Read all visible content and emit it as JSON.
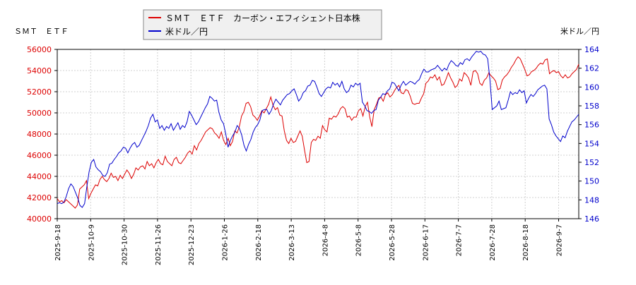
{
  "chart_data": {
    "type": "line",
    "left_label": "ＳＭＴ　ＥＴＦ",
    "right_label": "米ドル／円",
    "legend": [
      {
        "name": "ＳＭＴ　ＥＴＦ　カーボン・エフィシェント日本株",
        "color": "#dd0000"
      },
      {
        "name": "米ドル／円",
        "color": "#0000cc"
      }
    ],
    "y_left": {
      "min": 40000,
      "max": 56000,
      "ticks": [
        "40000",
        "42000",
        "44000",
        "46000",
        "48000",
        "50000",
        "52000",
        "54000",
        "56000"
      ],
      "color": "#dd0000"
    },
    "y_right": {
      "min": 146,
      "max": 164,
      "ticks": [
        "146",
        "148",
        "150",
        "152",
        "154",
        "156",
        "158",
        "160",
        "162",
        "164"
      ],
      "color": "#0000cc"
    },
    "x_ticks": [
      "2025-9-18",
      "2025-10-9",
      "2025-10-30",
      "2025-11-26",
      "2025-12-23",
      "2026-1-26",
      "2026-2-18",
      "2026-3-13",
      "2026-4-8",
      "2026-5-8",
      "2026-5-28",
      "2026-6-17",
      "2026-7-7",
      "2026-7-28",
      "2026-8-18",
      "2026-9-7"
    ],
    "grid": true,
    "series": [
      {
        "name": "ＳＭＴ　ＥＴＦ　カーボン・エフィシェント日本株",
        "axis": "left",
        "color": "#dd0000",
        "values": [
          41900,
          41600,
          41700,
          41500,
          41800,
          41600,
          41400,
          41200,
          41000,
          41300,
          42800,
          43000,
          43200,
          43600,
          41900,
          42400,
          42800,
          43200,
          43100,
          43700,
          44000,
          43700,
          43500,
          43800,
          44300,
          43900,
          44000,
          43600,
          44100,
          43800,
          44200,
          44600,
          44300,
          43800,
          44200,
          44800,
          44600,
          44900,
          45000,
          44700,
          45400,
          45000,
          45200,
          44800,
          45300,
          45600,
          45200,
          45100,
          45900,
          45400,
          45200,
          45000,
          45600,
          45800,
          45300,
          45200,
          45500,
          45800,
          46200,
          46400,
          46100,
          46900,
          46500,
          47100,
          47400,
          47800,
          48200,
          48400,
          48600,
          48500,
          48100,
          47900,
          47600,
          48200,
          47400,
          47000,
          47600,
          46900,
          47300,
          48300,
          48100,
          48700,
          49700,
          50100,
          50900,
          51000,
          50600,
          49800,
          49600,
          49300,
          49700,
          50200,
          50000,
          50400,
          50800,
          51500,
          50700,
          50300,
          50500,
          49800,
          49700,
          48300,
          47400,
          47100,
          47600,
          47200,
          47300,
          47800,
          48300,
          47800,
          46500,
          45300,
          45400,
          47200,
          47500,
          47400,
          47800,
          47600,
          48800,
          48400,
          48200,
          49500,
          49400,
          49700,
          49600,
          49900,
          50400,
          50600,
          50400,
          49600,
          49700,
          49300,
          49600,
          49600,
          50200,
          50400,
          49700,
          50600,
          51000,
          49600,
          48700,
          50300,
          50800,
          51400,
          51500,
          51100,
          51700,
          51900,
          51500,
          51700,
          52100,
          52400,
          52600,
          51900,
          51800,
          52200,
          52100,
          51600,
          50900,
          50800,
          50900,
          50900,
          51400,
          51800,
          52800,
          53000,
          53400,
          53300,
          53600,
          53100,
          53400,
          52600,
          52700,
          53200,
          53800,
          53300,
          52900,
          52400,
          52600,
          53200,
          53000,
          53800,
          53600,
          53300,
          52600,
          53900,
          54000,
          53700,
          52800,
          52600,
          53100,
          53300,
          53800,
          53500,
          53300,
          53000,
          52200,
          52300,
          53100,
          53400,
          53600,
          53900,
          54300,
          54600,
          55000,
          55300,
          55100,
          54600,
          54100,
          53500,
          53600,
          53900,
          54000,
          54200,
          54500,
          54700,
          54600,
          55000,
          55100,
          53700,
          53900,
          54000,
          53800,
          53900,
          53500,
          53300,
          53600,
          53300,
          53400,
          53700,
          53900,
          54100,
          54600
        ]
      },
      {
        "name": "米ドル／円",
        "axis": "right",
        "color": "#0000cc",
        "values": [
          147.6,
          147.7,
          147.6,
          147.8,
          148.4,
          149.2,
          149.7,
          149.4,
          148.8,
          148.2,
          147.4,
          147.2,
          147.6,
          149.4,
          151.0,
          152.0,
          152.3,
          151.5,
          151.2,
          151.0,
          150.6,
          150.5,
          150.9,
          151.8,
          151.9,
          152.3,
          152.6,
          153.0,
          153.2,
          153.6,
          153.5,
          153.0,
          153.5,
          153.9,
          154.1,
          153.6,
          153.8,
          154.3,
          154.8,
          155.3,
          155.9,
          156.7,
          157.1,
          156.3,
          156.5,
          155.6,
          155.9,
          155.4,
          155.8,
          155.6,
          156.1,
          155.4,
          155.8,
          156.2,
          155.5,
          155.9,
          155.7,
          156.3,
          157.4,
          157.0,
          156.5,
          156.0,
          156.3,
          156.8,
          157.3,
          157.8,
          158.2,
          159.0,
          158.8,
          158.5,
          158.6,
          157.3,
          156.5,
          156.1,
          155.0,
          153.6,
          154.3,
          154.8,
          155.2,
          155.9,
          155.6,
          154.9,
          153.8,
          153.2,
          153.9,
          154.4,
          155.2,
          155.7,
          156.0,
          156.5,
          157.5,
          157.6,
          157.6,
          157.1,
          157.5,
          158.2,
          158.7,
          158.4,
          158.1,
          158.6,
          158.9,
          159.2,
          159.3,
          159.6,
          159.8,
          159.2,
          158.5,
          158.8,
          159.4,
          159.6,
          160.1,
          160.2,
          160.7,
          160.6,
          160.0,
          159.3,
          159.0,
          159.4,
          159.8,
          160.0,
          159.9,
          160.5,
          160.2,
          160.4,
          160.0,
          160.6,
          159.8,
          159.4,
          159.6,
          160.2,
          160.0,
          160.4,
          160.2,
          160.4,
          158.4,
          158.0,
          157.5,
          157.4,
          157.2,
          157.5,
          157.6,
          158.6,
          158.9,
          159.3,
          159.2,
          159.6,
          159.8,
          160.5,
          160.4,
          160.0,
          159.6,
          160.2,
          160.6,
          160.2,
          160.4,
          160.6,
          160.5,
          160.3,
          160.6,
          160.8,
          161.4,
          161.9,
          161.6,
          161.6,
          161.8,
          161.9,
          162.0,
          162.3,
          162.0,
          161.7,
          162.0,
          161.8,
          162.4,
          162.8,
          162.6,
          162.3,
          162.2,
          162.6,
          162.4,
          162.9,
          163.0,
          162.8,
          163.2,
          163.5,
          163.8,
          163.7,
          163.8,
          163.5,
          163.4,
          163.0,
          160.8,
          157.6,
          157.8,
          158.0,
          158.5,
          157.6,
          157.7,
          157.8,
          158.6,
          159.5,
          159.2,
          159.4,
          159.3,
          159.7,
          159.4,
          159.6,
          158.3,
          158.8,
          159.2,
          159.0,
          159.3,
          159.7,
          159.9,
          160.1,
          160.2,
          159.8,
          156.6,
          156.0,
          155.2,
          154.8,
          154.5,
          154.2,
          154.8,
          154.6,
          155.3,
          155.8,
          156.3,
          156.5,
          156.8,
          157.1
        ]
      }
    ]
  }
}
